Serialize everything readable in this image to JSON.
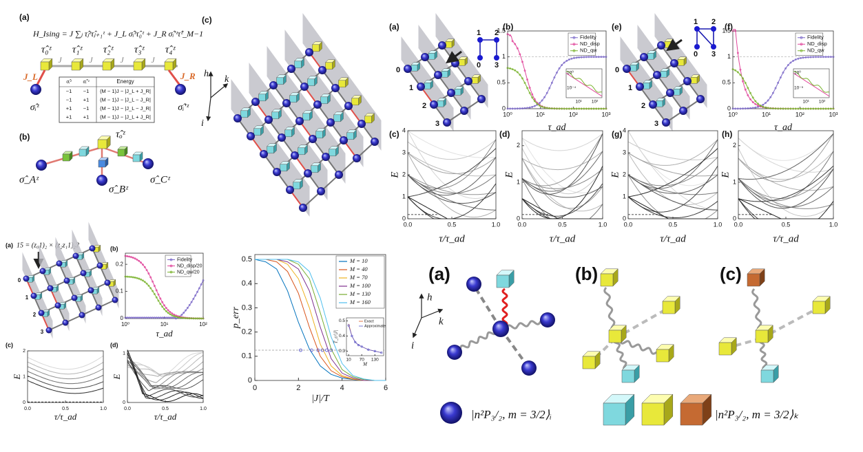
{
  "fig1": {
    "panel_a": "(a)",
    "panel_b": "(b)",
    "panel_c": "(c)",
    "hamiltonian": "H_Ising = J ∑ⱼ τ̂ⱼᶻτ̂ⱼ₊₁ᶻ + J_L σ̂ᵢᶻτ̂₀ᶻ + J_R σ̂ᵢ′ᶻτ̂ᶻ_M−1",
    "chain_spins": [
      "τ̂₀ᶻ",
      "τ̂₁ᶻ",
      "τ̂₂ᶻ",
      "τ̂₃ᶻ",
      "τ̂₄ᶻ"
    ],
    "couplings": [
      "J",
      "J",
      "J",
      "J"
    ],
    "left_coupling": "J_L",
    "right_coupling": "J_R",
    "left_spin": "σ̂ᵢᶻ",
    "right_spin": "σ̂ᵢ′ᶻ",
    "table": {
      "header": [
        "σ̂ᵢᶻ",
        "σ̂ᵢ′ᶻ",
        "Energy"
      ],
      "rows": [
        [
          "−1",
          "−1",
          "(M − 1)J − |J_L + J_R|"
        ],
        [
          "−1",
          "+1",
          "(M − 1)J − |J_L − J_R|"
        ],
        [
          "+1",
          "−1",
          "(M − 1)J − |J_L − J_R|"
        ],
        [
          "+1",
          "+1",
          "(M − 1)J − |J_L + J_R|"
        ]
      ]
    },
    "star": {
      "center": "τ̂ₒᶻ",
      "a": "σ̂_Aᶻ",
      "b": "σ̂_Bᶻ",
      "c": "σ̂_Cᶻ"
    },
    "axes": [
      "h",
      "k",
      "i"
    ]
  },
  "fig2": {
    "panels": [
      "(a)",
      "(b)",
      "(c)",
      "(d)",
      "(e)",
      "(f)",
      "(g)",
      "(h)"
    ],
    "sites_left": [
      "0",
      "1",
      "2",
      "3"
    ],
    "graph_left": [
      "1",
      "2",
      "0",
      "3"
    ],
    "sites_right": [
      "0",
      "1",
      "2",
      "3"
    ],
    "graph_right": [
      "1",
      "2",
      "0",
      "3"
    ],
    "plot_b": {
      "legend": [
        "Fidelity",
        "ND_disp",
        "ND_qw"
      ],
      "xlabel": "τ_ad",
      "xticks": [
        "10⁰",
        "10¹",
        "10²",
        "10³"
      ],
      "yticks": [
        "0",
        "0.5",
        "1",
        "1.5"
      ],
      "inset_xticks": [
        "10¹",
        "10²"
      ],
      "inset_yticks": [
        "10⁰",
        "10⁻⁴"
      ]
    },
    "plot_f": {
      "legend": [
        "Fidelity",
        "ND_disp",
        "ND_qw"
      ],
      "xlabel": "τ_ad",
      "xticks": [
        "10⁰",
        "10¹",
        "10²",
        "10³"
      ],
      "yticks": [
        "0",
        "0.5",
        "1",
        "1.5"
      ],
      "inset_xticks": [
        "10¹",
        "10²"
      ],
      "inset_yticks": [
        "10⁰",
        "10⁻⁵"
      ]
    },
    "plot_c": {
      "ylabel": "E",
      "xlabel": "τ/τ_ad",
      "xticks": [
        "0.0",
        "0.5",
        "1.0"
      ],
      "yticks": [
        "0",
        "1",
        "2",
        "3",
        "4"
      ]
    },
    "plot_d": {
      "ylabel": "E",
      "xlabel": "τ/τ_ad",
      "xticks": [
        "0.0",
        "0.5",
        "1.0"
      ],
      "yticks": [
        "0",
        "1",
        "2"
      ]
    },
    "plot_g": {
      "ylabel": "E",
      "xlabel": "τ/τ_ad",
      "xticks": [
        "0.0",
        "0.5",
        "1.0"
      ],
      "yticks": [
        "0",
        "1",
        "2",
        "3",
        "4"
      ]
    },
    "plot_h": {
      "ylabel": "E",
      "xlabel": "τ/τ_ad",
      "xticks": [
        "0.0",
        "0.5",
        "1.0"
      ],
      "yticks": [
        "0",
        "1",
        "2"
      ]
    }
  },
  "fig3": {
    "panels": [
      "(a)",
      "(b)",
      "(c)",
      "(d)"
    ],
    "question": "15 = (z₀1)₂ × (z₂z₁1)₂?",
    "sites": [
      "0",
      "1",
      "2",
      "3"
    ],
    "plot_b": {
      "legend": [
        "Fidelity",
        "ND_disp/20",
        "ND_qw/20"
      ],
      "xlabel": "τ_ad",
      "xticks": [
        "10⁰",
        "10¹",
        "10²"
      ],
      "yticks": [
        "0",
        "0.1",
        "0.2"
      ]
    },
    "plot_c": {
      "ylabel": "E",
      "xlabel": "τ/τ_ad",
      "xticks": [
        "0.0",
        "0.5",
        "1.0"
      ],
      "yticks": [
        "0",
        "1",
        "2"
      ]
    },
    "plot_d": {
      "ylabel": "E",
      "xlabel": "τ/τ_ad",
      "xticks": [
        "0.0",
        "0.5",
        "1.0"
      ],
      "yticks": [
        "0",
        "1"
      ]
    }
  },
  "chart_data": {
    "type": "line",
    "xlabel": "|J|/T",
    "ylabel": "p_err",
    "x": [
      0,
      0.5,
      1,
      1.5,
      2,
      2.5,
      3,
      3.5,
      4,
      4.5,
      5,
      5.5,
      6
    ],
    "series": [
      {
        "name": "M = 10",
        "color": "#0072BD",
        "values": [
          0.5,
          0.49,
          0.46,
          0.37,
          0.24,
          0.13,
          0.06,
          0.025,
          0.01,
          0.004,
          0,
          0,
          0
        ]
      },
      {
        "name": "M = 40",
        "color": "#D95319",
        "values": [
          0.5,
          0.5,
          0.49,
          0.45,
          0.36,
          0.22,
          0.1,
          0.04,
          0.015,
          0.005,
          0,
          0,
          0
        ]
      },
      {
        "name": "M = 70",
        "color": "#EDB120",
        "values": [
          0.5,
          0.5,
          0.5,
          0.48,
          0.42,
          0.3,
          0.15,
          0.06,
          0.02,
          0.006,
          0,
          0,
          0
        ]
      },
      {
        "name": "M = 100",
        "color": "#7E2F8E",
        "values": [
          0.5,
          0.5,
          0.5,
          0.49,
          0.46,
          0.37,
          0.22,
          0.09,
          0.03,
          0.01,
          0,
          0,
          0
        ]
      },
      {
        "name": "M = 130",
        "color": "#77AC30",
        "values": [
          0.5,
          0.5,
          0.5,
          0.5,
          0.48,
          0.42,
          0.28,
          0.13,
          0.045,
          0.015,
          0.004,
          0,
          0
        ]
      },
      {
        "name": "M = 160",
        "color": "#4DBEEE",
        "values": [
          0.5,
          0.5,
          0.5,
          0.5,
          0.49,
          0.45,
          0.34,
          0.18,
          0.07,
          0.02,
          0.006,
          0,
          0
        ]
      }
    ],
    "reference_line": 0.125,
    "crossings": [
      2.1,
      2.6,
      2.9,
      3.1,
      3.3,
      3.5
    ],
    "xlim": [
      0,
      6
    ],
    "ylim": [
      0,
      0.52
    ],
    "xticks": [
      0,
      2,
      4,
      6
    ],
    "yticks": [
      0,
      0.1,
      0.2,
      0.3,
      0.4,
      0.5
    ],
    "legend": "upper right",
    "inset": {
      "xlabel": "M",
      "ylabel": "T_c/|J|",
      "x": [
        10,
        25,
        40,
        55,
        70,
        100,
        130,
        160
      ],
      "series": [
        {
          "name": "Exact",
          "color": "#D95319",
          "values": [
            0.48,
            0.4,
            0.36,
            0.34,
            0.33,
            0.31,
            0.3,
            0.29
          ]
        },
        {
          "name": "Approximate",
          "color": "#5a5ad0",
          "values": [
            0.47,
            0.4,
            0.36,
            0.34,
            0.33,
            0.31,
            0.3,
            0.29
          ]
        }
      ],
      "xlim": [
        0,
        170
      ],
      "ylim": [
        0.27,
        0.52
      ],
      "xticks": [
        10,
        70,
        130
      ],
      "yticks": [
        0.3,
        0.4,
        0.5
      ]
    }
  },
  "fig5": {
    "panels": [
      "(a)",
      "(b)",
      "(c)"
    ],
    "axes": [
      "h",
      "k",
      "i"
    ],
    "legend_rydberg": "|n²P₃/₂, m = 3/2⟩ᵢ",
    "legend_ancilla": "|n²P₃/₂, m = 3/2⟩ₖ"
  }
}
